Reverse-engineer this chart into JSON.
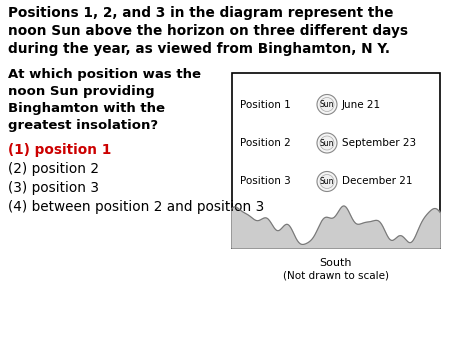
{
  "title_lines": [
    "Positions 1, 2, and 3 in the diagram represent the",
    "noon Sun above the horizon on three different days",
    "during the year, as viewed from Binghamton, N Y."
  ],
  "question_lines": [
    "At which position was the",
    "noon Sun providing",
    "Binghamton with the",
    "greatest insolation?"
  ],
  "answers": [
    {
      "text": "(1) position 1",
      "bold": true,
      "color": "#cc0000"
    },
    {
      "text": "(2) position 2",
      "bold": false,
      "color": "#000000"
    },
    {
      "text": "(3) position 3",
      "bold": false,
      "color": "#000000"
    },
    {
      "text": "(4) between position 2 and position 3",
      "bold": false,
      "color": "#000000"
    }
  ],
  "diagram_positions": [
    {
      "label": "Position 1",
      "date": "June 21",
      "yf": 0.82
    },
    {
      "label": "Position 2",
      "date": "September 23",
      "yf": 0.6
    },
    {
      "label": "Position 3",
      "date": "December 21",
      "yf": 0.38
    }
  ],
  "south_label": "South",
  "scale_note": "(Not drawn to scale)",
  "bg_color": "#ffffff",
  "horizon_color": "#cccccc"
}
